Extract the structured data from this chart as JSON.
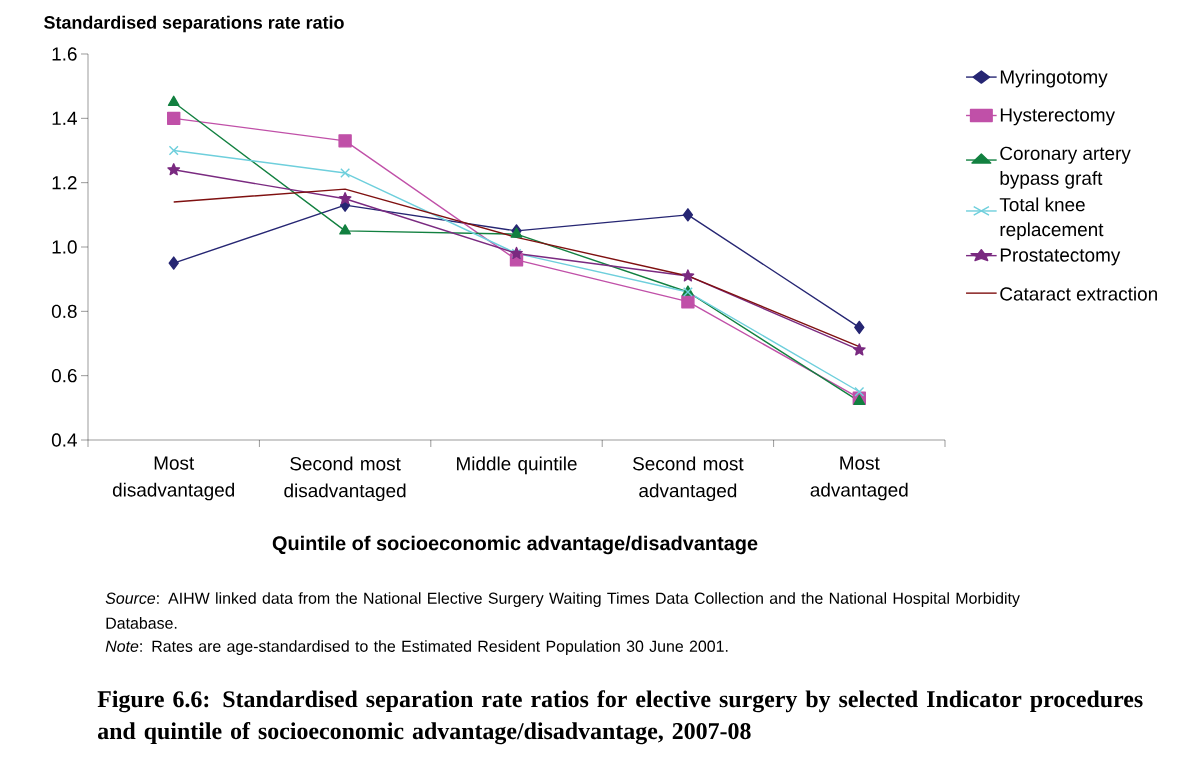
{
  "chart_data": {
    "type": "line",
    "title": "Figure 6.6: Standardised separation rate ratios for elective surgery by selected Indicator procedures and quintile of socioeconomic advantage/disadvantage, 2007-08",
    "xlabel": "Quintile of socioeconomic advantage/disadvantage",
    "ylabel": "Standardised separations rate ratio",
    "categories": [
      "Most disadvantaged",
      "Second most disadvantaged",
      "Middle quintile",
      "Second most advantaged",
      "Most advantaged"
    ],
    "series": [
      {
        "name": "Myringotomy",
        "color": "#262673",
        "marker": "diamond",
        "values": [
          0.95,
          1.13,
          1.05,
          1.1,
          0.75
        ]
      },
      {
        "name": "Hysterectomy",
        "color": "#c050a8",
        "marker": "square",
        "values": [
          1.4,
          1.33,
          0.96,
          0.83,
          0.53
        ]
      },
      {
        "name": "Coronary artery bypass graft",
        "color": "#128040",
        "marker": "triangle",
        "values": [
          1.45,
          1.05,
          1.04,
          0.86,
          0.52
        ]
      },
      {
        "name": "Total knee replacement",
        "color": "#6ecfdc",
        "marker": "cross",
        "values": [
          1.3,
          1.23,
          0.98,
          0.86,
          0.55
        ]
      },
      {
        "name": "Prostatectomy",
        "color": "#7a2a80",
        "marker": "star",
        "values": [
          1.24,
          1.15,
          0.98,
          0.91,
          0.68
        ]
      },
      {
        "name": "Cataract extraction",
        "color": "#7f1010",
        "marker": "none",
        "values": [
          1.14,
          1.18,
          1.03,
          0.91,
          0.69
        ]
      }
    ],
    "ylim": [
      0.4,
      1.6
    ],
    "yticks": [
      0.4,
      0.6,
      0.8,
      {
        "value": 1.0,
        "label": "1.0"
      },
      1.2,
      1.4,
      1.6
    ],
    "grid": false,
    "legend": "right",
    "line_style": "solid",
    "annotations": [
      "*Source*: AIHW linked data from the National Elective Surgery Waiting Times Data Collection and the National Hospital Morbidity Database.",
      "*Note*: Rates are age-standardised to the Estimated Resident Population 30 June 2001."
    ]
  }
}
